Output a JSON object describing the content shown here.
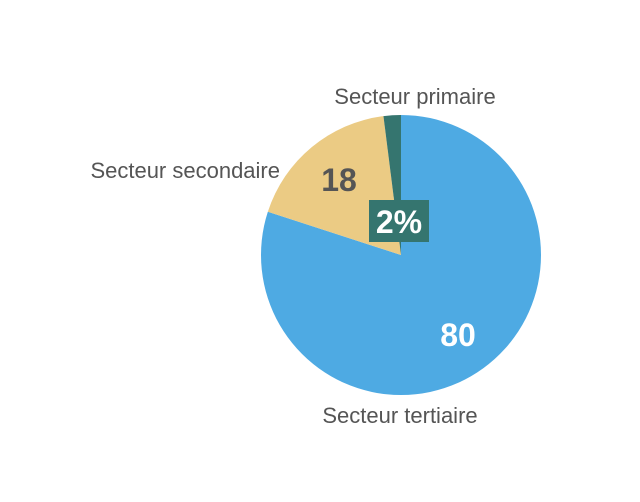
{
  "chart_data": {
    "type": "pie",
    "title": "",
    "start": "top",
    "direction": "clockwise",
    "slices": [
      {
        "label": "Secteur tertiaire",
        "value": 80,
        "value_label": "80",
        "color": "#4eaae3",
        "value_color": "#ffffff"
      },
      {
        "label": "Secteur secondaire",
        "value": 18,
        "value_label": "18",
        "color": "#ebcb84",
        "value_color": "#555555"
      },
      {
        "label": "Secteur primaire",
        "value": 2,
        "value_label": "2%",
        "color": "#35756f",
        "value_color": "#ffffff"
      }
    ]
  }
}
